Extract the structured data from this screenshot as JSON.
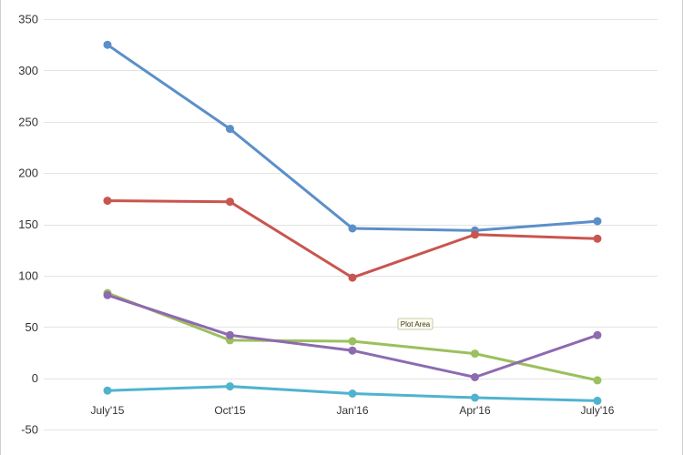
{
  "chart_data": {
    "type": "line",
    "title": "",
    "xlabel": "",
    "ylabel": "",
    "categories": [
      "July'15",
      "Oct'15",
      "Jan'16",
      "Apr'16",
      "July'16"
    ],
    "ylim": [
      -50,
      350
    ],
    "yticks": [
      -50,
      0,
      50,
      100,
      150,
      200,
      250,
      300,
      350
    ],
    "grid": true,
    "legend": "none",
    "series": [
      {
        "color": "#5b8fc9",
        "values": [
          325,
          243,
          146,
          144,
          153
        ]
      },
      {
        "color": "#c9554f",
        "values": [
          173,
          172,
          98,
          140,
          136
        ]
      },
      {
        "color": "#9bc05d",
        "values": [
          83,
          37,
          36,
          24,
          -2
        ]
      },
      {
        "color": "#8e6ab0",
        "values": [
          81,
          42,
          27,
          1,
          42
        ]
      },
      {
        "color": "#4fb3cf",
        "values": [
          -12,
          -8,
          -15,
          -19,
          -22
        ]
      }
    ],
    "tooltip": "Plot Area"
  }
}
